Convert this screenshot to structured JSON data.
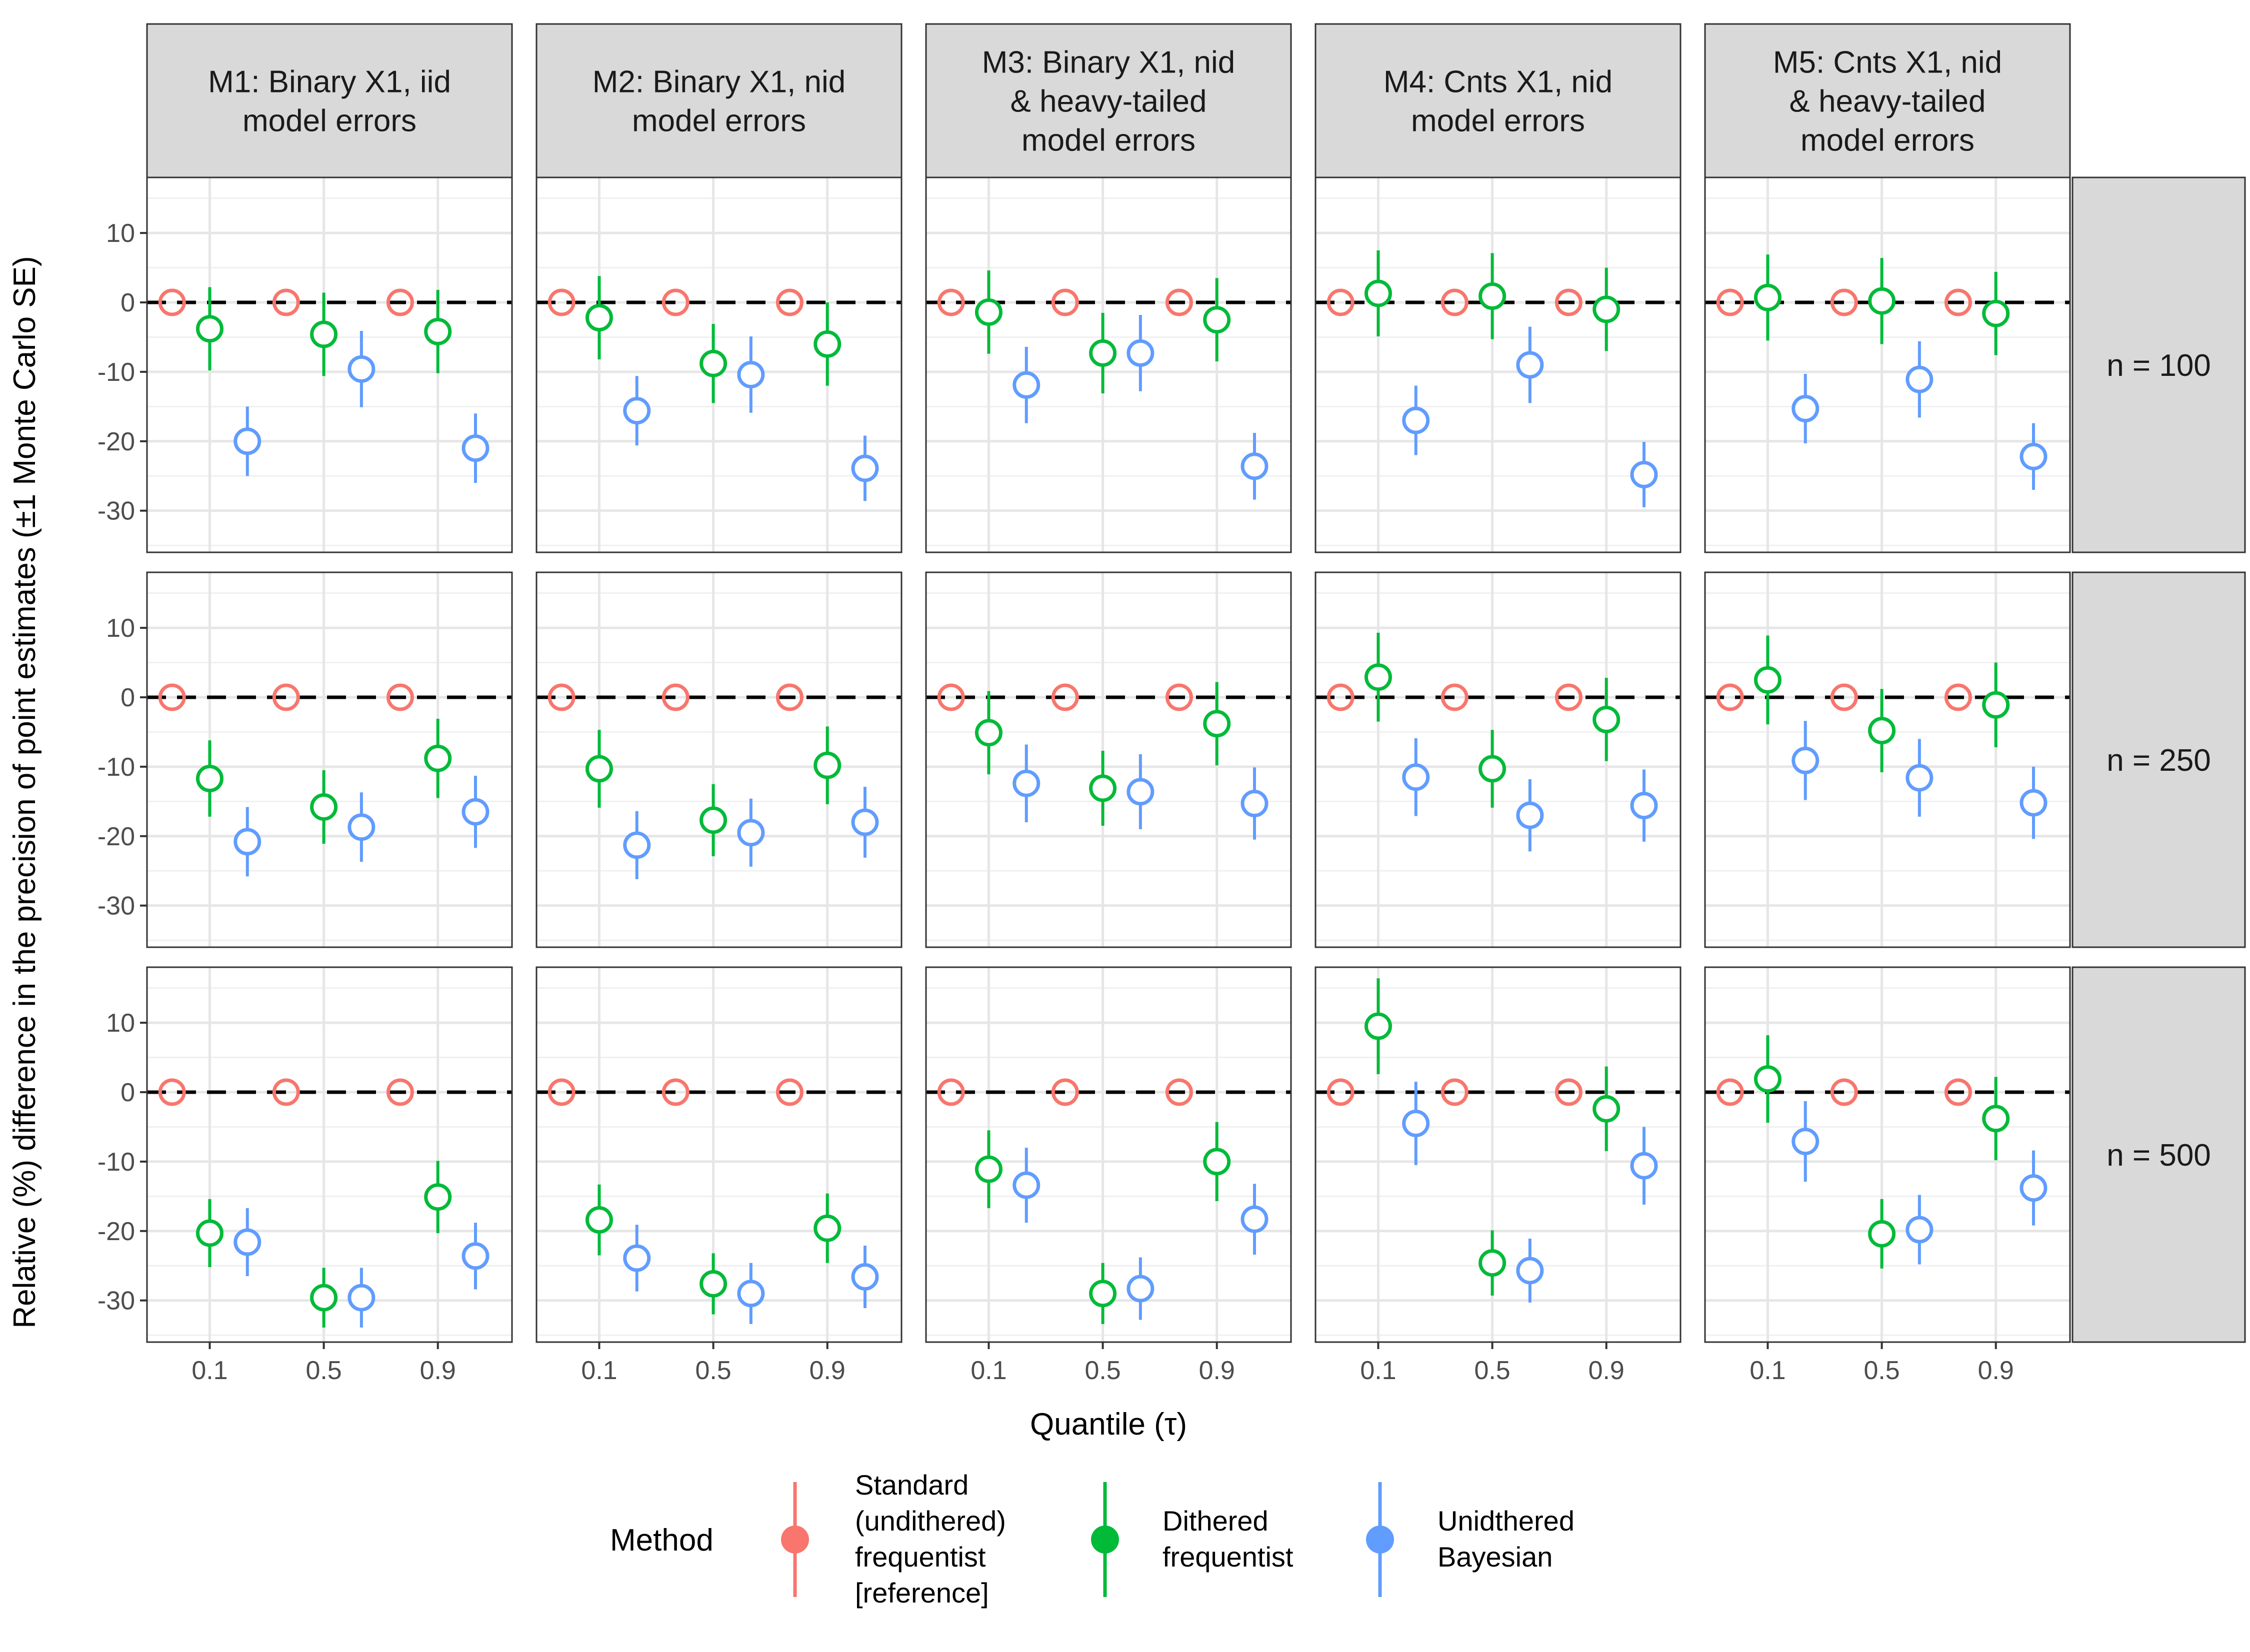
{
  "chart_data": {
    "type": "scatter",
    "subtype": "point-errorbar faceted grid",
    "xlabel": "Quantile (τ)",
    "ylabel": "Relative (%) difference in the precision of point estimates (±1 Monte Carlo SE)",
    "x_ticks": [
      "0.1",
      "0.5",
      "0.9"
    ],
    "y_ticks": [
      10,
      0,
      -10,
      -20,
      -30
    ],
    "ylim": [
      -36,
      18
    ],
    "reference_line": 0,
    "legend_title": "Method",
    "legend_position": "bottom",
    "methods": [
      {
        "key": "standard",
        "name": "Standard (undithered) frequentist [reference]",
        "lines": [
          "Standard",
          "(undithered)",
          "frequentist",
          "[reference]"
        ],
        "color": "#F8766D"
      },
      {
        "key": "dithered",
        "name": "Dithered frequentist",
        "lines": [
          "Dithered",
          "frequentist"
        ],
        "color": "#00BA38"
      },
      {
        "key": "bayes",
        "name": "Unidthered Bayesian",
        "lines": [
          "Unidthered",
          "Bayesian"
        ],
        "color": "#619CFF"
      }
    ],
    "columns": [
      {
        "id": "M1",
        "label_lines": [
          "M1: Binary X1, iid",
          "model errors"
        ]
      },
      {
        "id": "M2",
        "label_lines": [
          "M2: Binary X1, nid",
          "model errors"
        ]
      },
      {
        "id": "M3",
        "label_lines": [
          "M3: Binary X1, nid",
          "& heavy-tailed",
          "model errors"
        ]
      },
      {
        "id": "M4",
        "label_lines": [
          "M4: Cnts X1, nid",
          "model errors"
        ]
      },
      {
        "id": "M5",
        "label_lines": [
          "M5: Cnts X1, nid",
          "& heavy-tailed",
          "model errors"
        ]
      }
    ],
    "rows": [
      {
        "id": "n100",
        "label": "n = 100"
      },
      {
        "id": "n250",
        "label": "n = 250"
      },
      {
        "id": "n500",
        "label": "n = 500"
      }
    ],
    "panels": [
      [
        {
          "dithered": [
            [
              -3.8,
              6.0
            ],
            [
              -4.6,
              6.0
            ],
            [
              -4.2,
              6.0
            ]
          ],
          "bayes": [
            [
              -20.0,
              5.0
            ],
            [
              -9.6,
              5.5
            ],
            [
              -21.0,
              5.0
            ]
          ]
        },
        {
          "dithered": [
            [
              -2.2,
              6.0
            ],
            [
              -8.8,
              5.7
            ],
            [
              -6.0,
              6.0
            ]
          ],
          "bayes": [
            [
              -15.6,
              5.0
            ],
            [
              -10.4,
              5.5
            ],
            [
              -23.9,
              4.7
            ]
          ]
        },
        {
          "dithered": [
            [
              -1.4,
              6.0
            ],
            [
              -7.3,
              5.8
            ],
            [
              -2.5,
              6.0
            ]
          ],
          "bayes": [
            [
              -11.9,
              5.5
            ],
            [
              -7.3,
              5.5
            ],
            [
              -23.6,
              4.8
            ]
          ]
        },
        {
          "dithered": [
            [
              1.3,
              6.2
            ],
            [
              0.9,
              6.2
            ],
            [
              -1.0,
              6.0
            ]
          ],
          "bayes": [
            [
              -17.0,
              5.0
            ],
            [
              -9.0,
              5.5
            ],
            [
              -24.8,
              4.7
            ]
          ]
        },
        {
          "dithered": [
            [
              0.7,
              6.2
            ],
            [
              0.2,
              6.2
            ],
            [
              -1.6,
              6.0
            ]
          ],
          "bayes": [
            [
              -15.3,
              5.0
            ],
            [
              -11.1,
              5.5
            ],
            [
              -22.2,
              4.8
            ]
          ]
        }
      ],
      [
        {
          "dithered": [
            [
              -11.7,
              5.5
            ],
            [
              -15.8,
              5.3
            ],
            [
              -8.8,
              5.7
            ]
          ],
          "bayes": [
            [
              -20.8,
              5.0
            ],
            [
              -18.7,
              5.0
            ],
            [
              -16.5,
              5.2
            ]
          ]
        },
        {
          "dithered": [
            [
              -10.3,
              5.6
            ],
            [
              -17.7,
              5.2
            ],
            [
              -9.8,
              5.6
            ]
          ],
          "bayes": [
            [
              -21.3,
              4.9
            ],
            [
              -19.5,
              4.9
            ],
            [
              -18.0,
              5.1
            ]
          ]
        },
        {
          "dithered": [
            [
              -5.1,
              6.0
            ],
            [
              -13.1,
              5.4
            ],
            [
              -3.8,
              6.0
            ]
          ],
          "bayes": [
            [
              -12.4,
              5.6
            ],
            [
              -13.6,
              5.4
            ],
            [
              -15.3,
              5.2
            ]
          ]
        },
        {
          "dithered": [
            [
              2.9,
              6.4
            ],
            [
              -10.3,
              5.6
            ],
            [
              -3.2,
              6.0
            ]
          ],
          "bayes": [
            [
              -11.5,
              5.6
            ],
            [
              -17.0,
              5.2
            ],
            [
              -15.6,
              5.2
            ]
          ]
        },
        {
          "dithered": [
            [
              2.5,
              6.4
            ],
            [
              -4.8,
              6.0
            ],
            [
              -1.1,
              6.1
            ]
          ],
          "bayes": [
            [
              -9.1,
              5.7
            ],
            [
              -11.6,
              5.6
            ],
            [
              -15.2,
              5.2
            ]
          ]
        }
      ],
      [
        {
          "dithered": [
            [
              -20.3,
              4.9
            ],
            [
              -29.6,
              4.3
            ],
            [
              -15.1,
              5.2
            ]
          ],
          "bayes": [
            [
              -21.6,
              4.9
            ],
            [
              -29.6,
              4.3
            ],
            [
              -23.6,
              4.8
            ]
          ]
        },
        {
          "dithered": [
            [
              -18.4,
              5.1
            ],
            [
              -27.6,
              4.4
            ],
            [
              -19.6,
              5.0
            ]
          ],
          "bayes": [
            [
              -23.9,
              4.8
            ],
            [
              -29.0,
              4.4
            ],
            [
              -26.6,
              4.5
            ]
          ]
        },
        {
          "dithered": [
            [
              -11.1,
              5.6
            ],
            [
              -29.0,
              4.4
            ],
            [
              -10.0,
              5.7
            ]
          ],
          "bayes": [
            [
              -13.4,
              5.4
            ],
            [
              -28.3,
              4.5
            ],
            [
              -18.3,
              5.1
            ]
          ]
        },
        {
          "dithered": [
            [
              9.5,
              6.9
            ],
            [
              -24.6,
              4.7
            ],
            [
              -2.4,
              6.1
            ]
          ],
          "bayes": [
            [
              -4.5,
              6.0
            ],
            [
              -25.7,
              4.6
            ],
            [
              -10.6,
              5.6
            ]
          ]
        },
        {
          "dithered": [
            [
              1.9,
              6.3
            ],
            [
              -20.4,
              5.0
            ],
            [
              -3.8,
              6.0
            ]
          ],
          "bayes": [
            [
              -7.1,
              5.8
            ],
            [
              -19.8,
              5.0
            ],
            [
              -13.8,
              5.4
            ]
          ]
        }
      ]
    ]
  }
}
